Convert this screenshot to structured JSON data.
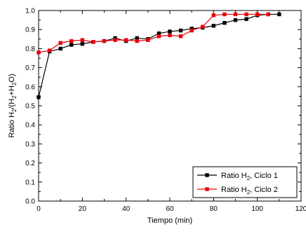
{
  "chart_data": {
    "type": "line",
    "title": "",
    "xlabel": "Tiempo (min)",
    "ylabel": {
      "parts": [
        {
          "text": "Ratio H",
          "sub": false
        },
        {
          "text": "2",
          "sub": true
        },
        {
          "text": "/(H",
          "sub": false
        },
        {
          "text": "2",
          "sub": true
        },
        {
          "text": "+H",
          "sub": false
        },
        {
          "text": "2",
          "sub": true
        },
        {
          "text": "O)",
          "sub": false
        }
      ]
    },
    "xlim": [
      0,
      120
    ],
    "ylim": [
      0.0,
      1.0
    ],
    "xticks": [
      0,
      20,
      40,
      60,
      80,
      100,
      120
    ],
    "yticks": [
      0.0,
      0.1,
      0.2,
      0.3,
      0.4,
      0.5,
      0.6,
      0.7,
      0.8,
      0.9,
      1.0
    ],
    "xtick_labels": [
      "0",
      "20",
      "40",
      "60",
      "80",
      "100",
      "120"
    ],
    "ytick_labels": [
      "0.0",
      "0.1",
      "0.2",
      "0.3",
      "0.4",
      "0.5",
      "0.6",
      "0.7",
      "0.8",
      "0.9",
      "1.0"
    ],
    "grid": false,
    "legend_position": "bottom-right",
    "series": [
      {
        "name": "Ratio H2, Ciclo 1",
        "name_parts": [
          {
            "text": "Ratio H",
            "sub": false
          },
          {
            "text": "2",
            "sub": true
          },
          {
            "text": ", Ciclo 1",
            "sub": false
          }
        ],
        "color": "#000000",
        "marker": "square",
        "x": [
          0,
          5,
          10,
          15,
          20,
          25,
          30,
          35,
          40,
          45,
          50,
          55,
          60,
          65,
          70,
          75,
          80,
          85,
          90,
          95,
          100,
          105,
          110
        ],
        "y": [
          0.545,
          0.785,
          0.8,
          0.82,
          0.825,
          0.835,
          0.84,
          0.855,
          0.84,
          0.855,
          0.85,
          0.88,
          0.89,
          0.895,
          0.905,
          0.91,
          0.92,
          0.935,
          0.95,
          0.955,
          0.975,
          0.98,
          0.98
        ]
      },
      {
        "name": "Ratio H2, Ciclo 2",
        "name_parts": [
          {
            "text": "Ratio H",
            "sub": false
          },
          {
            "text": "2",
            "sub": true
          },
          {
            "text": ", Ciclo 2",
            "sub": false
          }
        ],
        "color": "#e8000b",
        "marker": "square",
        "x": [
          0,
          5,
          10,
          15,
          20,
          25,
          30,
          35,
          40,
          45,
          50,
          55,
          60,
          65,
          70,
          75,
          80,
          85,
          90,
          95,
          100,
          105
        ],
        "y": [
          0.78,
          0.79,
          0.83,
          0.84,
          0.845,
          0.835,
          0.84,
          0.845,
          0.845,
          0.84,
          0.845,
          0.865,
          0.87,
          0.865,
          0.895,
          0.915,
          0.975,
          0.98,
          0.98,
          0.98,
          0.98,
          0.98
        ]
      }
    ]
  }
}
